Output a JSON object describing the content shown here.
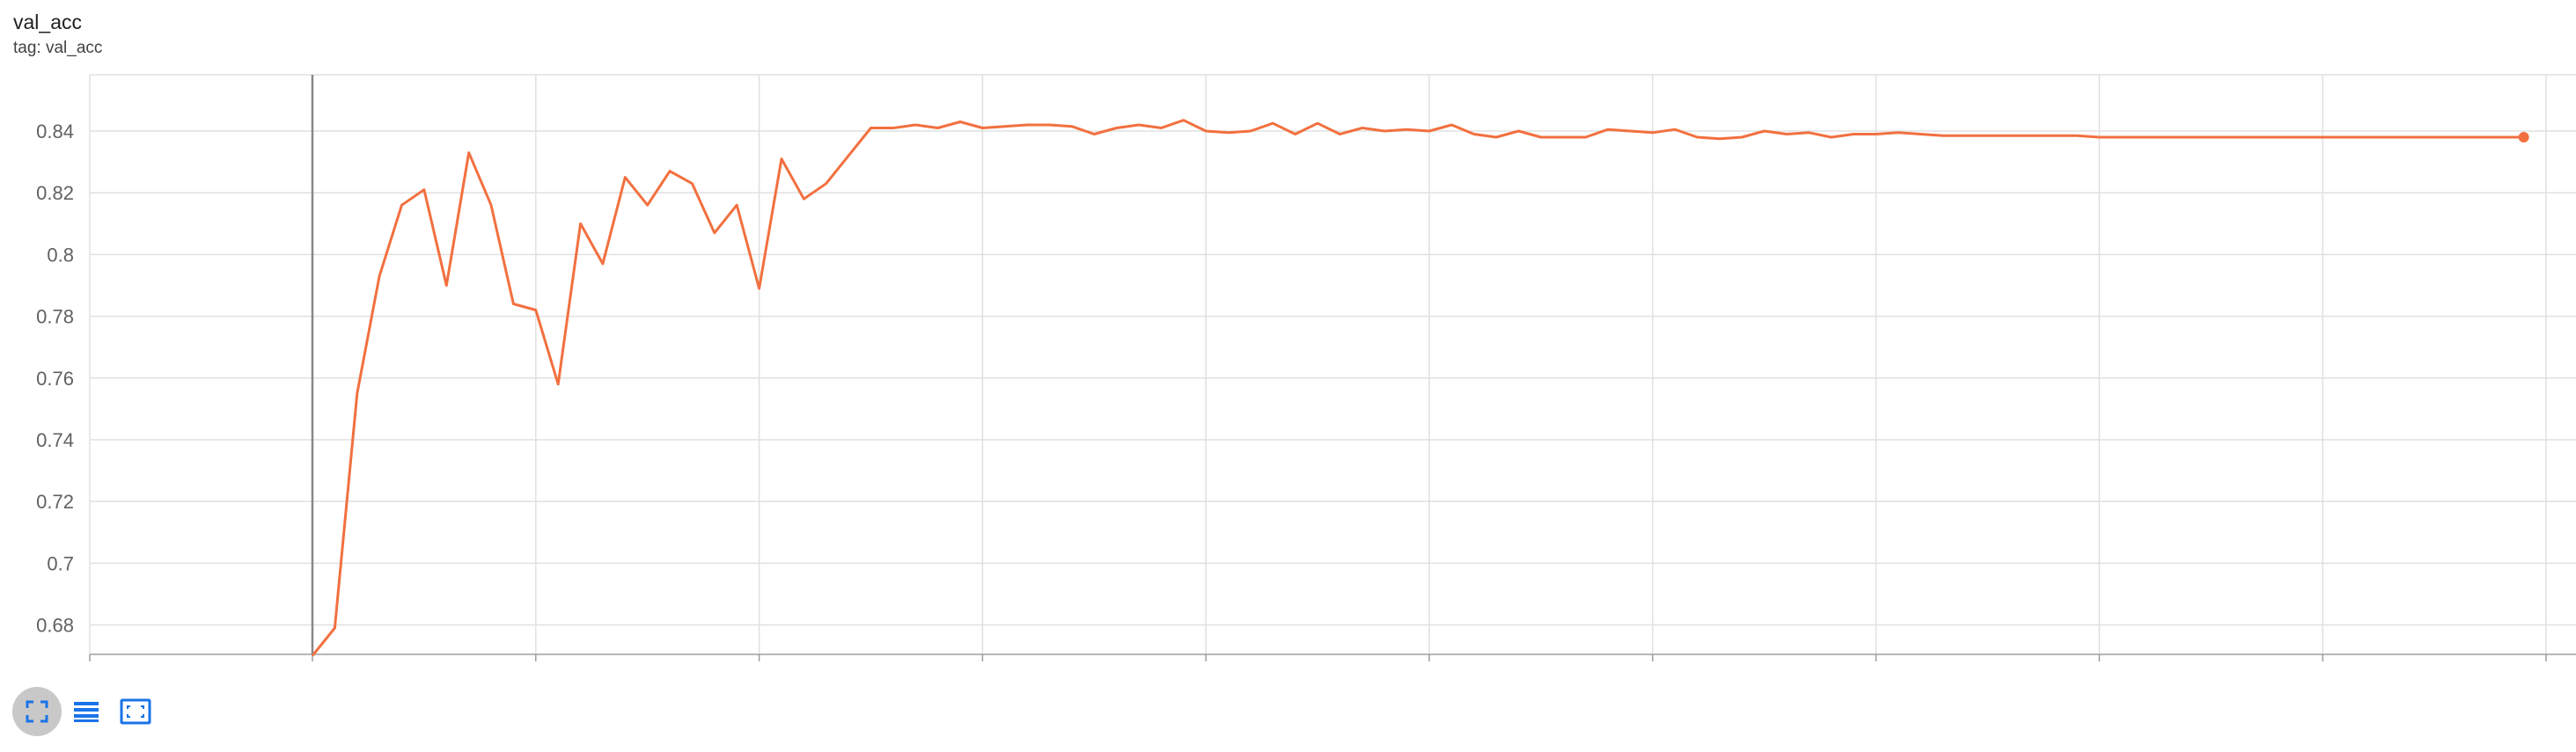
{
  "card": {
    "title": "val_acc",
    "tag": "tag: val_acc"
  },
  "colors": {
    "series": "#f2703f",
    "grid": "#e0e0e0",
    "axis": "#9e9e9e",
    "icon": "#1a73e8",
    "active_button": "#c8c8c8"
  },
  "toolbar": {
    "buttons": [
      {
        "icon": "fullscreen-icon",
        "active": true
      },
      {
        "icon": "toggle-log-scale-icon",
        "active": false
      },
      {
        "icon": "fit-domain-icon",
        "active": false
      }
    ]
  },
  "chart_data": {
    "type": "line",
    "title": "val_acc",
    "xlabel": "",
    "ylabel": "",
    "xlim": [
      -10,
      101
    ],
    "ylim": [
      0.66,
      0.86
    ],
    "grid": true,
    "x_ticks": [
      0,
      10,
      20,
      30,
      40,
      50,
      60,
      70,
      80,
      90,
      100
    ],
    "y_ticks": [
      0.68,
      0.7,
      0.72,
      0.74,
      0.76,
      0.78,
      0.8,
      0.82,
      0.84
    ],
    "y_tick_labels": [
      "0.68",
      "0.7",
      "0.72",
      "0.74",
      "0.76",
      "0.78",
      "0.8",
      "0.82",
      "0.84"
    ],
    "series": [
      {
        "name": "",
        "color": "#f2703f",
        "x": [
          0,
          1,
          2,
          3,
          4,
          5,
          6,
          7,
          8,
          9,
          10,
          11,
          12,
          13,
          14,
          15,
          16,
          17,
          18,
          19,
          20,
          21,
          22,
          23,
          24,
          25,
          26,
          27,
          28,
          29,
          30,
          31,
          32,
          33,
          34,
          35,
          36,
          37,
          38,
          39,
          40,
          41,
          42,
          43,
          44,
          45,
          46,
          47,
          48,
          49,
          50,
          51,
          52,
          53,
          54,
          55,
          56,
          57,
          58,
          59,
          60,
          61,
          62,
          63,
          64,
          65,
          66,
          67,
          68,
          69,
          70,
          71,
          72,
          73,
          74,
          75,
          76,
          77,
          78,
          79,
          80,
          81,
          82,
          83,
          84,
          85,
          86,
          87,
          88,
          89,
          90,
          91,
          92,
          93,
          94,
          95,
          96,
          97,
          98,
          99
        ],
        "y": [
          0.67,
          0.679,
          0.755,
          0.793,
          0.816,
          0.821,
          0.79,
          0.833,
          0.816,
          0.784,
          0.782,
          0.758,
          0.81,
          0.797,
          0.825,
          0.816,
          0.827,
          0.823,
          0.807,
          0.816,
          0.789,
          0.831,
          0.818,
          0.823,
          0.832,
          0.841,
          0.841,
          0.842,
          0.841,
          0.843,
          0.841,
          0.8415,
          0.842,
          0.842,
          0.8415,
          0.839,
          0.841,
          0.842,
          0.841,
          0.8435,
          0.84,
          0.8395,
          0.84,
          0.8425,
          0.839,
          0.8425,
          0.839,
          0.841,
          0.84,
          0.8405,
          0.84,
          0.842,
          0.839,
          0.838,
          0.84,
          0.838,
          0.838,
          0.838,
          0.8405,
          0.84,
          0.8395,
          0.8405,
          0.838,
          0.8375,
          0.838,
          0.84,
          0.839,
          0.8395,
          0.838,
          0.839,
          0.839,
          0.8395,
          0.839,
          0.8385,
          0.8385,
          0.8385,
          0.8385,
          0.8385,
          0.8385,
          0.8385,
          0.838,
          0.838,
          0.838,
          0.838,
          0.838,
          0.838,
          0.838,
          0.838,
          0.838,
          0.838,
          0.838,
          0.838,
          0.838,
          0.838,
          0.838,
          0.838,
          0.838,
          0.838,
          0.838,
          0.838
        ]
      }
    ]
  }
}
